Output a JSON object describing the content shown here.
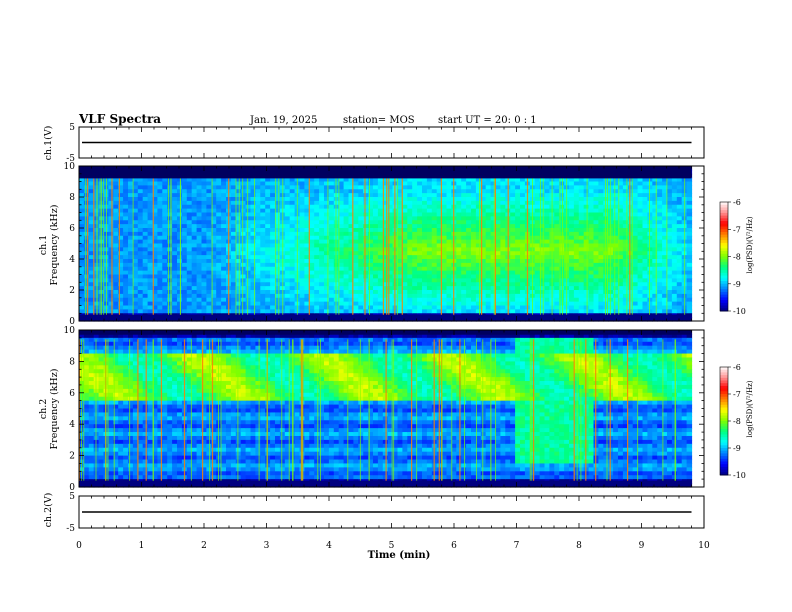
{
  "header": {
    "title": "VLF Spectra",
    "date": "Jan. 19, 2025",
    "station": "station= MOS",
    "start": "start  UT =   20: 0  : 1"
  },
  "colors": {
    "colormap": [
      "#000080",
      "#0000ff",
      "#0080ff",
      "#00ffff",
      "#00ff80",
      "#80ff00",
      "#ffff00",
      "#ff8000",
      "#ff0000",
      "#ff9090",
      "#ffffff"
    ]
  },
  "chart_data": [
    {
      "type": "line",
      "name": "waveform-ch1",
      "ylabel": "ch.1(V)",
      "ylim": [
        -5,
        5
      ],
      "yticks": [
        "5",
        "-5"
      ],
      "y": 0,
      "xlim": [
        0,
        10
      ]
    },
    {
      "type": "heatmap",
      "name": "spectrogram-ch1",
      "ylabel_channel": "ch.1",
      "ylabel": "Frequency (kHz)",
      "ylim": [
        0,
        10
      ],
      "yticks": [
        "0",
        "2",
        "4",
        "6",
        "8",
        "10"
      ],
      "xlim": [
        0,
        10
      ],
      "data_end_min": 9.8,
      "colorbar": {
        "label": "log(PSD)(V²/Hz)",
        "range": [
          -10,
          -6
        ],
        "ticks": [
          "-6",
          "-7",
          "-8",
          "-9",
          "-10"
        ]
      },
      "dominant_band_khz": [
        0.5,
        9.0
      ],
      "brightest_period_min": [
        5.5,
        8.5
      ]
    },
    {
      "type": "heatmap",
      "name": "spectrogram-ch2",
      "ylabel_channel": "ch.2",
      "ylabel": "Frequency (kHz)",
      "ylim": [
        0,
        10
      ],
      "yticks": [
        "0",
        "2",
        "4",
        "6",
        "8",
        "10"
      ],
      "xlim": [
        0,
        10
      ],
      "data_end_min": 9.8,
      "colorbar": {
        "label": "log(PSD)(V²/Hz)",
        "range": [
          -10,
          -6
        ],
        "ticks": [
          "-6",
          "-7",
          "-8",
          "-9",
          "-10"
        ]
      },
      "dominant_band_khz": [
        5.5,
        8.5
      ],
      "broadband_period_min": [
        7.0,
        8.2
      ]
    },
    {
      "type": "line",
      "name": "waveform-ch2",
      "ylabel": "ch.2(V)",
      "ylim": [
        -5,
        5
      ],
      "yticks": [
        "5",
        "-5"
      ],
      "y": 0,
      "xlim": [
        0,
        10
      ]
    }
  ],
  "xaxis": {
    "label": "Time (min)",
    "ticks": [
      "0",
      "1",
      "2",
      "3",
      "4",
      "5",
      "6",
      "7",
      "8",
      "9",
      "10"
    ]
  }
}
